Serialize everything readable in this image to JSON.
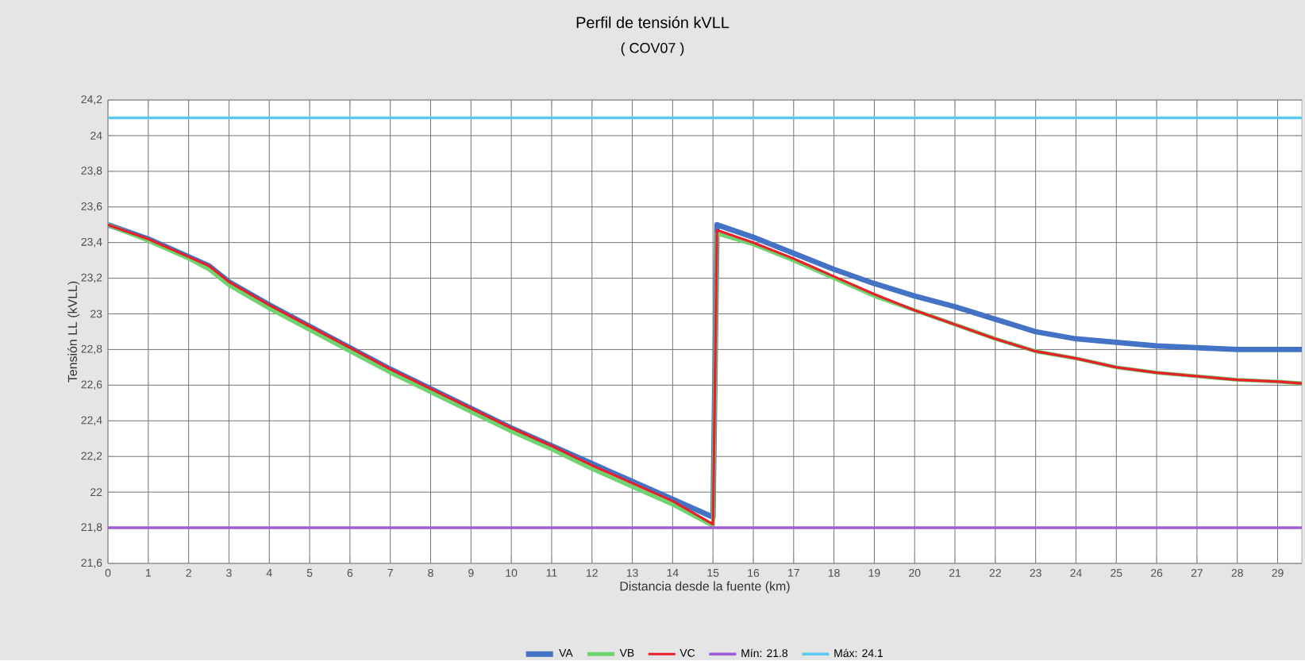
{
  "chart_data": {
    "type": "line",
    "title": "Perfil de tensión kVLL",
    "subtitle": "( COV07 )",
    "xlabel": "Distancia desde la fuente (km)",
    "ylabel": "Tensión LL (kVLL)",
    "xlim": [
      0,
      29.6
    ],
    "ylim": [
      21.6,
      24.2
    ],
    "xticks": [
      0,
      1,
      2,
      3,
      4,
      5,
      6,
      7,
      8,
      9,
      10,
      11,
      12,
      13,
      14,
      15,
      16,
      17,
      18,
      19,
      20,
      21,
      22,
      23,
      24,
      25,
      26,
      27,
      28,
      29
    ],
    "yticks": [
      {
        "value": 21.6,
        "label": "21,6"
      },
      {
        "value": 21.8,
        "label": "21,8"
      },
      {
        "value": 22,
        "label": "22"
      },
      {
        "value": 22.2,
        "label": "22,2"
      },
      {
        "value": 22.4,
        "label": "22,4"
      },
      {
        "value": 22.6,
        "label": "22,6"
      },
      {
        "value": 22.8,
        "label": "22,8"
      },
      {
        "value": 23,
        "label": "23"
      },
      {
        "value": 23.2,
        "label": "23,2"
      },
      {
        "value": 23.4,
        "label": "23,4"
      },
      {
        "value": 23.6,
        "label": "23,6"
      },
      {
        "value": 23.8,
        "label": "23,8"
      },
      {
        "value": 24,
        "label": "24"
      },
      {
        "value": 24.2,
        "label": "24,2"
      }
    ],
    "grid": true,
    "legend": "bottom",
    "marker": "none",
    "line_style": "solid",
    "x": [
      0,
      1,
      2,
      2.5,
      3,
      4,
      5,
      6,
      7,
      8,
      9,
      10,
      11,
      12,
      13,
      14,
      15,
      15.1,
      16,
      17,
      18,
      19,
      20,
      21,
      22,
      23,
      24,
      25,
      26,
      27,
      28,
      29,
      29.6
    ],
    "series": [
      {
        "name": "VA",
        "color": "#4472c4",
        "values": [
          23.5,
          23.42,
          23.32,
          23.27,
          23.18,
          23.05,
          22.93,
          22.81,
          22.69,
          22.58,
          22.47,
          22.36,
          22.26,
          22.16,
          22.06,
          21.96,
          21.86,
          23.5,
          23.43,
          23.34,
          23.25,
          23.17,
          23.1,
          23.04,
          22.97,
          22.9,
          22.86,
          22.84,
          22.82,
          22.81,
          22.8,
          22.8,
          22.8
        ]
      },
      {
        "name": "VB",
        "color": "#6fd46f",
        "values": [
          23.5,
          23.41,
          23.31,
          23.25,
          23.16,
          23.03,
          22.91,
          22.79,
          22.67,
          22.56,
          22.45,
          22.34,
          22.24,
          22.13,
          22.03,
          21.93,
          21.81,
          23.45,
          23.39,
          23.3,
          23.2,
          23.1,
          23.02,
          22.94,
          22.86,
          22.79,
          22.75,
          22.7,
          22.67,
          22.65,
          22.63,
          22.62,
          22.61
        ]
      },
      {
        "name": "VC",
        "color": "#e8202a",
        "values": [
          23.5,
          23.42,
          23.32,
          23.27,
          23.18,
          23.05,
          22.93,
          22.81,
          22.69,
          22.58,
          22.47,
          22.36,
          22.26,
          22.15,
          22.05,
          21.95,
          21.82,
          23.47,
          23.4,
          23.31,
          23.21,
          23.11,
          23.02,
          22.94,
          22.86,
          22.79,
          22.75,
          22.7,
          22.67,
          22.65,
          22.63,
          22.62,
          22.61
        ]
      }
    ],
    "ref_lines": [
      {
        "axis": "y",
        "value": 21.8,
        "label": "Mín: 21.8",
        "color": "#a05cd6"
      },
      {
        "axis": "y",
        "value": 24.1,
        "label": "Máx: 24.1",
        "color": "#5bc8f0"
      }
    ]
  }
}
